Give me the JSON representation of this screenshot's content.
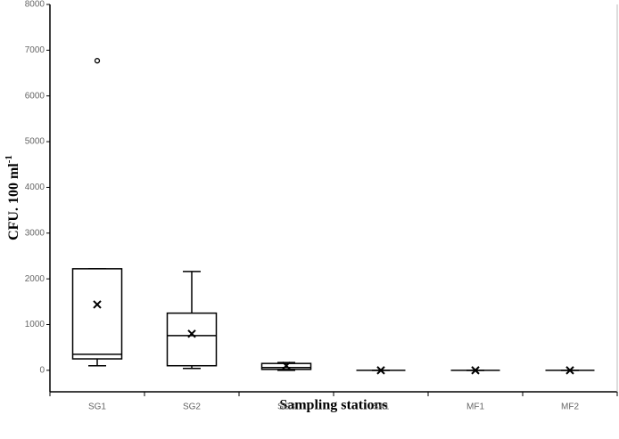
{
  "chart_data": {
    "type": "box",
    "x_label": "Sampling stations",
    "y_label": "CFU. 100 ml",
    "y_label_sup": "-1",
    "categories": [
      "SG1",
      "SG2",
      "SG3",
      "SA1",
      "MF1",
      "MF2"
    ],
    "boxes": [
      {
        "min": 100,
        "q1": 250,
        "median": 350,
        "q3": 2220,
        "max": 2220,
        "mean": 1440,
        "outliers": [
          6770
        ]
      },
      {
        "min": 40,
        "q1": 100,
        "median": 760,
        "q3": 1250,
        "max": 2160,
        "mean": 800,
        "outliers": []
      },
      {
        "min": 0,
        "q1": 20,
        "median": 60,
        "q3": 150,
        "max": 170,
        "mean": 100,
        "outliers": []
      },
      {
        "min": 0,
        "q1": 0,
        "median": 0,
        "q3": 0,
        "max": 0,
        "mean": 0,
        "outliers": []
      },
      {
        "min": 0,
        "q1": 0,
        "median": 0,
        "q3": 0,
        "max": 0,
        "mean": 0,
        "outliers": []
      },
      {
        "min": 0,
        "q1": 0,
        "median": 0,
        "q3": 0,
        "max": 0,
        "mean": 0,
        "outliers": []
      }
    ],
    "color": "#000000",
    "ylim": [
      -470,
      8000
    ],
    "yticks": [
      0,
      1000,
      2000,
      3000,
      4000,
      5000,
      6000,
      7000,
      8000
    ],
    "grid": false
  }
}
